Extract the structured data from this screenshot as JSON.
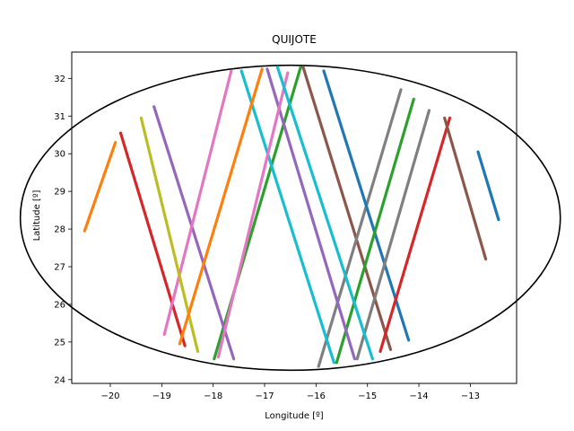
{
  "chart_data": {
    "type": "line",
    "title": "QUIJOTE",
    "xlabel": "Longitude [º]",
    "ylabel": "Latitude [º]",
    "xlim": [
      -20.75,
      -12.1
    ],
    "ylim": [
      23.9,
      32.7
    ],
    "xticks": [
      -20,
      -19,
      -18,
      -17,
      -16,
      -15,
      -14,
      -13
    ],
    "yticks": [
      24,
      25,
      26,
      27,
      28,
      29,
      30,
      31,
      32
    ],
    "grid": false,
    "legend": "none",
    "boundary": {
      "type": "ellipse",
      "center": [
        -16.5,
        28.3
      ],
      "radii": [
        5.25,
        4.05
      ],
      "color": "#000000"
    },
    "series": [
      {
        "color": "#1f77b4",
        "points": [
          [
            -12.85,
            30.05
          ],
          [
            -12.45,
            28.25
          ]
        ]
      },
      {
        "color": "#ff7f0e",
        "points": [
          [
            -20.5,
            27.95
          ],
          [
            -19.9,
            30.3
          ]
        ]
      },
      {
        "color": "#2ca02c",
        "points": [
          [
            -17.98,
            24.55
          ],
          [
            -16.3,
            32.3
          ]
        ]
      },
      {
        "color": "#d62728",
        "points": [
          [
            -18.55,
            24.9
          ],
          [
            -19.8,
            30.55
          ]
        ]
      },
      {
        "color": "#9467bd",
        "points": [
          [
            -19.15,
            31.25
          ],
          [
            -17.6,
            24.55
          ]
        ]
      },
      {
        "color": "#8c564b",
        "points": [
          [
            -16.25,
            32.3
          ],
          [
            -14.55,
            24.8
          ]
        ]
      },
      {
        "color": "#e377c2",
        "points": [
          [
            -18.95,
            25.2
          ],
          [
            -17.65,
            32.2
          ]
        ]
      },
      {
        "color": "#7f7f7f",
        "points": [
          [
            -15.95,
            24.35
          ],
          [
            -14.35,
            31.7
          ]
        ]
      },
      {
        "color": "#bcbd22",
        "points": [
          [
            -19.4,
            30.95
          ],
          [
            -18.3,
            24.75
          ]
        ]
      },
      {
        "color": "#17becf",
        "points": [
          [
            -17.45,
            32.2
          ],
          [
            -15.65,
            24.45
          ]
        ]
      },
      {
        "color": "#1f77b4",
        "points": [
          [
            -15.85,
            32.2
          ],
          [
            -14.2,
            25.05
          ]
        ]
      },
      {
        "color": "#ff7f0e",
        "points": [
          [
            -18.65,
            24.95
          ],
          [
            -17.05,
            32.25
          ]
        ]
      },
      {
        "color": "#2ca02c",
        "points": [
          [
            -15.6,
            24.45
          ],
          [
            -14.1,
            31.45
          ]
        ]
      },
      {
        "color": "#d62728",
        "points": [
          [
            -14.75,
            24.75
          ],
          [
            -13.4,
            30.95
          ]
        ]
      },
      {
        "color": "#9467bd",
        "points": [
          [
            -16.95,
            32.25
          ],
          [
            -15.25,
            24.55
          ]
        ]
      },
      {
        "color": "#8c564b",
        "points": [
          [
            -13.5,
            30.95
          ],
          [
            -12.7,
            27.2
          ]
        ]
      },
      {
        "color": "#e377c2",
        "points": [
          [
            -17.9,
            24.6
          ],
          [
            -16.55,
            32.15
          ]
        ]
      },
      {
        "color": "#7f7f7f",
        "points": [
          [
            -15.2,
            24.55
          ],
          [
            -13.8,
            31.15
          ]
        ]
      },
      {
        "color": "#17becf",
        "points": [
          [
            -16.75,
            32.3
          ],
          [
            -14.9,
            24.55
          ]
        ]
      }
    ]
  }
}
